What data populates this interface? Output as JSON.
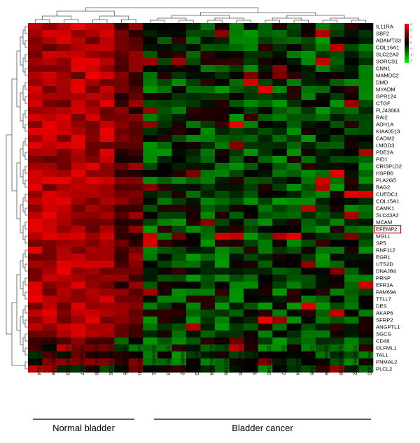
{
  "chart_data": {
    "type": "heatmap",
    "title": "",
    "xlabel": "",
    "ylabel": "",
    "genes": [
      "IL11RA",
      "SBF2",
      "ADAMTS3",
      "COL16A1",
      "SLC22A3",
      "SORCS1",
      "CNN1",
      "MAMDC2",
      "DMD",
      "MYADM",
      "GPR124",
      "CTGF",
      "FLJ43663",
      "RAI2",
      "ADH1A",
      "KIAA0513",
      "CADM2",
      "LMOD3",
      "PDE2A",
      "PID1",
      "CRISPLD2",
      "HSPB6",
      "PLA2G5",
      "BAG2",
      "CUEDC1",
      "COL15A1",
      "CAMK1",
      "SLC43A3",
      "MCAM",
      "EFEMP2",
      "MGLL",
      "SP5",
      "RNF112",
      "EGR1",
      "UTS2D",
      "DNAJB4",
      "PRNP",
      "EFR3A",
      "FAM69A",
      "TTLL7",
      "DES",
      "AKAP6",
      "SFRP2",
      "ANGPTL1",
      "SGCG",
      "CD48",
      "OLFML1",
      "TAL1",
      "PNMAL2",
      "PLCL2"
    ],
    "highlighted_gene": "EFEMP2",
    "samples": [
      "GSM691924",
      "GSM691929",
      "GSM691923",
      "GSM691927",
      "GSM691928",
      "GSM691926",
      "GSM691925",
      "GSM691930",
      "GSM691941",
      "GSM691943",
      "GSM691932",
      "GSM691933",
      "GSM691934",
      "GSM691936",
      "GSM691935",
      "GSM691931",
      "GSM691940",
      "GSM691937",
      "GSM691944",
      "GSM691946",
      "GSM691939",
      "GSM691938",
      "GSM691942",
      "GSM691945"
    ],
    "normal_sample_count": 8,
    "groups": [
      {
        "label": "Normal bladder",
        "count": 8
      },
      {
        "label": "Bladder cancer",
        "count": 16
      }
    ],
    "color_scale": {
      "min": -3,
      "max": 3,
      "ticks": [
        "3",
        "2",
        "1",
        "0",
        "-1",
        "-2",
        "-3"
      ],
      "high_color": "#ff0000",
      "mid_color": "#000000",
      "low_color": "#00ff00"
    },
    "typical_values": {
      "normal": 2.0,
      "cancer": -0.6
    }
  }
}
